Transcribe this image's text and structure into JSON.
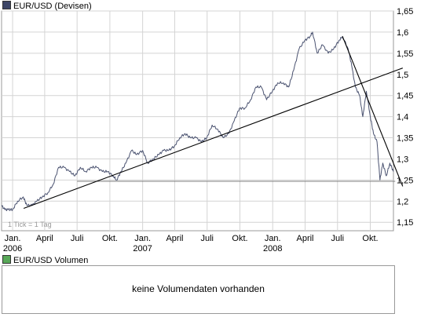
{
  "colors": {
    "price_line": "#4a5270",
    "price_swatch": "#3c4566",
    "volume_swatch": "#58a858",
    "trendline": "#000000",
    "support_line": "#7f7f7f",
    "grid": "#d4d4d4",
    "frame": "#999999"
  },
  "price_legend": "EUR/USD (Devisen)",
  "volume_legend": "EUR/USD Volumen",
  "volume_message": "keine Volumendaten vorhanden",
  "tick_note": "1 Tick = 1 Tag",
  "chart_data": {
    "type": "line",
    "title": "EUR/USD (Devisen)",
    "x_range": [
      "2005-12",
      "2008-12-05"
    ],
    "ylim": [
      1.13,
      1.65
    ],
    "y_ticks": [
      "1,15",
      "1,2",
      "1,25",
      "1,3",
      "1,35",
      "1,4",
      "1,45",
      "1,5",
      "1,55",
      "1,6",
      "1,65"
    ],
    "y_tick_values": [
      1.15,
      1.2,
      1.25,
      1.3,
      1.35,
      1.4,
      1.45,
      1.5,
      1.55,
      1.6,
      1.65
    ],
    "x_ticks": [
      {
        "label": "Jan.",
        "year": "2006",
        "date": "2006-01-01"
      },
      {
        "label": "April",
        "year": "",
        "date": "2006-04-01"
      },
      {
        "label": "Juli",
        "year": "",
        "date": "2006-07-01"
      },
      {
        "label": "Okt.",
        "year": "",
        "date": "2006-10-01"
      },
      {
        "label": "Jan.",
        "year": "2007",
        "date": "2007-01-01"
      },
      {
        "label": "April",
        "year": "",
        "date": "2007-04-01"
      },
      {
        "label": "Juli",
        "year": "",
        "date": "2007-07-01"
      },
      {
        "label": "Okt.",
        "year": "",
        "date": "2007-10-01"
      },
      {
        "label": "Jan.",
        "year": "2008",
        "date": "2008-01-01"
      },
      {
        "label": "April",
        "year": "",
        "date": "2008-04-01"
      },
      {
        "label": "Juli",
        "year": "",
        "date": "2008-07-01"
      },
      {
        "label": "Okt.",
        "year": "",
        "date": "2008-10-01"
      }
    ],
    "grid": true,
    "series": [
      {
        "values": [
          [
            "2005-12-01",
            1.19
          ],
          [
            "2005-12-10",
            1.18
          ],
          [
            "2005-12-20",
            1.18
          ],
          [
            "2006-01-01",
            1.18
          ],
          [
            "2006-01-15",
            1.2
          ],
          [
            "2006-01-31",
            1.21
          ],
          [
            "2006-02-10",
            1.19
          ],
          [
            "2006-02-25",
            1.19
          ],
          [
            "2006-03-10",
            1.2
          ],
          [
            "2006-03-25",
            1.21
          ],
          [
            "2006-04-10",
            1.22
          ],
          [
            "2006-04-25",
            1.24
          ],
          [
            "2006-05-10",
            1.28
          ],
          [
            "2006-05-25",
            1.28
          ],
          [
            "2006-06-10",
            1.27
          ],
          [
            "2006-06-25",
            1.26
          ],
          [
            "2006-07-10",
            1.28
          ],
          [
            "2006-07-25",
            1.27
          ],
          [
            "2006-08-10",
            1.28
          ],
          [
            "2006-08-25",
            1.28
          ],
          [
            "2006-09-10",
            1.27
          ],
          [
            "2006-09-25",
            1.27
          ],
          [
            "2006-10-10",
            1.26
          ],
          [
            "2006-10-20",
            1.25
          ],
          [
            "2006-11-01",
            1.27
          ],
          [
            "2006-11-15",
            1.29
          ],
          [
            "2006-12-01",
            1.32
          ],
          [
            "2006-12-15",
            1.31
          ],
          [
            "2007-01-01",
            1.32
          ],
          [
            "2007-01-15",
            1.29
          ],
          [
            "2007-01-31",
            1.3
          ],
          [
            "2007-02-15",
            1.31
          ],
          [
            "2007-03-01",
            1.32
          ],
          [
            "2007-03-15",
            1.32
          ],
          [
            "2007-03-31",
            1.33
          ],
          [
            "2007-04-15",
            1.35
          ],
          [
            "2007-04-30",
            1.36
          ],
          [
            "2007-05-15",
            1.35
          ],
          [
            "2007-05-31",
            1.35
          ],
          [
            "2007-06-15",
            1.34
          ],
          [
            "2007-06-30",
            1.35
          ],
          [
            "2007-07-15",
            1.38
          ],
          [
            "2007-07-31",
            1.37
          ],
          [
            "2007-08-15",
            1.35
          ],
          [
            "2007-08-31",
            1.36
          ],
          [
            "2007-09-15",
            1.39
          ],
          [
            "2007-09-30",
            1.42
          ],
          [
            "2007-10-15",
            1.42
          ],
          [
            "2007-10-31",
            1.44
          ],
          [
            "2007-11-15",
            1.47
          ],
          [
            "2007-11-30",
            1.47
          ],
          [
            "2007-12-15",
            1.44
          ],
          [
            "2007-12-31",
            1.46
          ],
          [
            "2008-01-15",
            1.48
          ],
          [
            "2008-01-31",
            1.48
          ],
          [
            "2008-02-15",
            1.47
          ],
          [
            "2008-02-29",
            1.51
          ],
          [
            "2008-03-15",
            1.56
          ],
          [
            "2008-03-31",
            1.58
          ],
          [
            "2008-04-15",
            1.59
          ],
          [
            "2008-04-22",
            1.6
          ],
          [
            "2008-05-05",
            1.55
          ],
          [
            "2008-05-20",
            1.57
          ],
          [
            "2008-06-05",
            1.55
          ],
          [
            "2008-06-20",
            1.56
          ],
          [
            "2008-07-05",
            1.58
          ],
          [
            "2008-07-15",
            1.59
          ],
          [
            "2008-07-31",
            1.56
          ],
          [
            "2008-08-10",
            1.52
          ],
          [
            "2008-08-20",
            1.47
          ],
          [
            "2008-09-01",
            1.45
          ],
          [
            "2008-09-10",
            1.4
          ],
          [
            "2008-09-20",
            1.46
          ],
          [
            "2008-10-01",
            1.4
          ],
          [
            "2008-10-10",
            1.36
          ],
          [
            "2008-10-20",
            1.34
          ],
          [
            "2008-10-28",
            1.25
          ],
          [
            "2008-11-05",
            1.29
          ],
          [
            "2008-11-15",
            1.26
          ],
          [
            "2008-11-25",
            1.29
          ],
          [
            "2008-12-05",
            1.27
          ]
        ]
      }
    ],
    "trendlines": [
      {
        "kind": "uptrend",
        "from": [
          "2006-02-01",
          1.183
        ],
        "to": [
          "2008-12-31",
          1.515
        ]
      },
      {
        "kind": "downtrend",
        "from": [
          "2008-07-15",
          1.59
        ],
        "to": [
          "2008-12-31",
          1.235
        ]
      },
      {
        "kind": "support",
        "from": [
          "2006-07-01",
          1.247
        ],
        "to": [
          "2008-12-10",
          1.247
        ]
      }
    ]
  }
}
